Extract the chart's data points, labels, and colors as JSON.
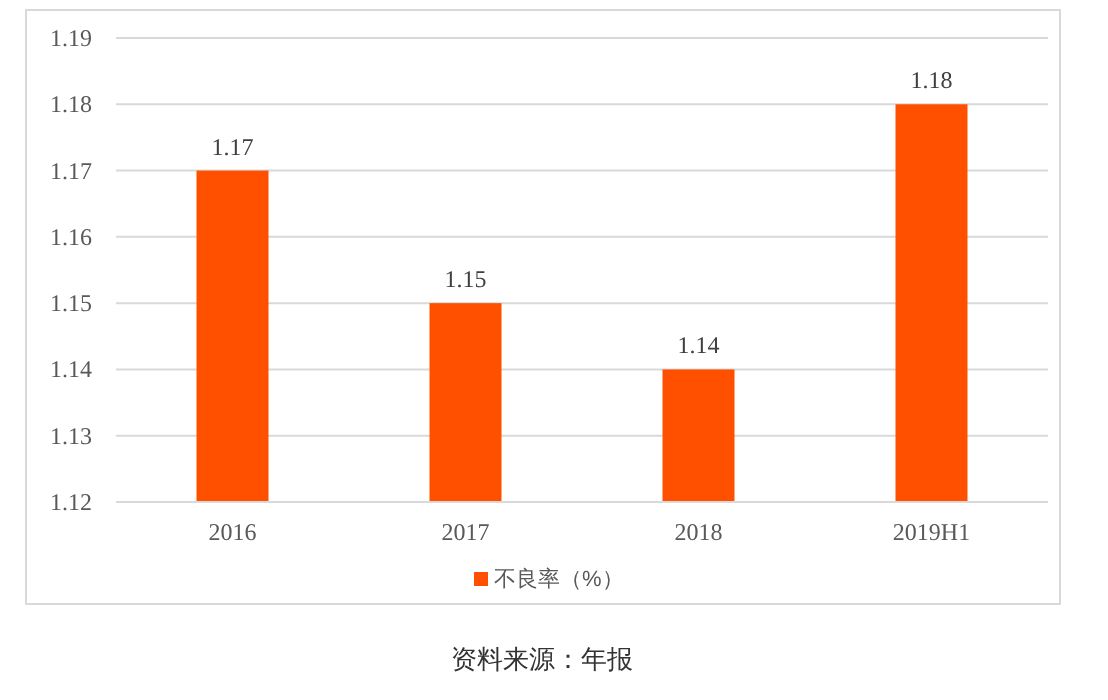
{
  "chart_data": {
    "type": "bar",
    "categories": [
      "2016",
      "2017",
      "2018",
      "2019H1"
    ],
    "series": [
      {
        "name": "不良率（%）",
        "color": "#ff5000",
        "values": [
          1.17,
          1.15,
          1.14,
          1.18
        ]
      }
    ],
    "ylim": [
      1.12,
      1.19
    ],
    "yticks": [
      1.12,
      1.13,
      1.14,
      1.15,
      1.16,
      1.17,
      1.18,
      1.19
    ],
    "grid": "y",
    "legend": "bottom",
    "data_labels": true,
    "annotations": [
      "资料来源：年报"
    ]
  }
}
